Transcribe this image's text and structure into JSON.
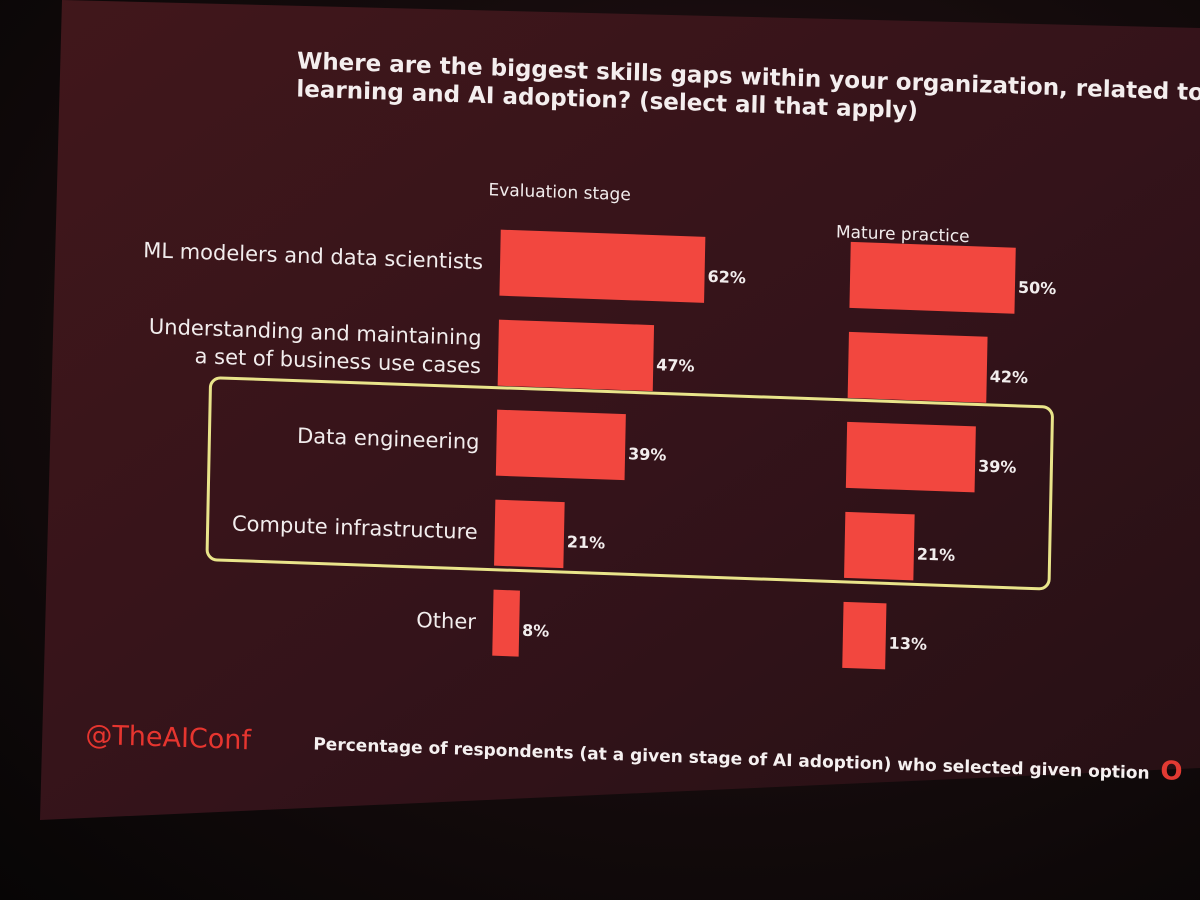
{
  "chart_data": {
    "type": "bar",
    "title_lines": [
      "Where are the biggest skills gaps within your organization, related to machine",
      "learning and AI adoption? (select all that apply)"
    ],
    "categories": [
      [
        "ML modelers and data scientists"
      ],
      [
        "Understanding and maintaining",
        "a set of business use cases"
      ],
      [
        "Data engineering"
      ],
      [
        "Compute infrastructure"
      ],
      [
        "Other"
      ]
    ],
    "series": [
      {
        "name": "Evaluation stage",
        "values": [
          62,
          47,
          39,
          21,
          8
        ],
        "value_labels": [
          "62%",
          "47%",
          "39%",
          "21%",
          "8%"
        ]
      },
      {
        "name": "Mature practice",
        "values": [
          50,
          42,
          39,
          21,
          13
        ],
        "value_labels": [
          "50%",
          "42%",
          "39%",
          "21%",
          "13%"
        ]
      }
    ],
    "unit": "%",
    "highlight_categories": [
      "Data engineering",
      "Compute infrastructure"
    ],
    "highlight_color": "#e9e48a",
    "bar_color": "#f2473f",
    "footnote": "Percentage of respondents (at a given stage of AI adoption) who selected given option"
  },
  "slide": {
    "handle": "@TheAIConf",
    "brand_mark": "O",
    "background_color": "#3a1519"
  }
}
